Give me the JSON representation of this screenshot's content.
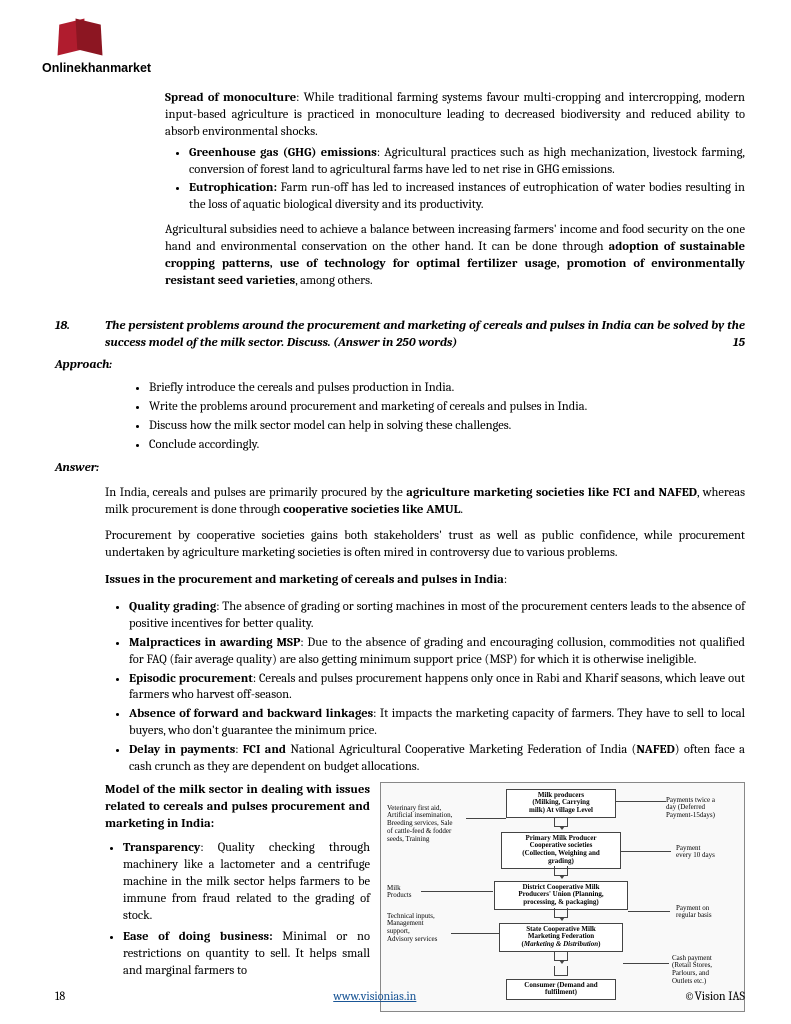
{
  "brand": "Onlinekhanmarket",
  "intro_bullets": {
    "monoculture": {
      "title": "Spread of monoculture",
      "text": ": While traditional farming systems favour multi-cropping and intercropping, modern input-based agriculture is practiced in monoculture leading to decreased biodiversity and reduced ability to absorb environmental shocks."
    },
    "ghg": {
      "title": "Greenhouse gas (GHG) emissions",
      "text": ": Agricultural practices such as high mechanization, livestock farming, conversion of forest land to agricultural farms have led to net rise in GHG emissions."
    },
    "eutro": {
      "title": "Eutrophication:",
      "text": " Farm run-off has led to increased instances of eutrophication of water bodies resulting in the loss of aquatic biological diversity and its productivity."
    }
  },
  "conclusion": {
    "pre": "Agricultural subsidies need to achieve a balance between increasing farmers' income and food security on the one hand and environmental conservation on the other hand. It can be done through ",
    "bold": "adoption of sustainable cropping patterns, use of technology for optimal fertilizer usage, promotion of environmentally resistant seed varieties",
    "post": ", among others."
  },
  "question": {
    "num": "18.",
    "text": "The persistent problems around the procurement and marketing of cereals and pulses in India can be solved by the success model of the milk sector. Discuss. (Answer in 250 words)",
    "marks": "15"
  },
  "headings": {
    "approach": "Approach:",
    "answer": "Answer:"
  },
  "approach": [
    "Briefly introduce the cereals and pulses production in India.",
    "Write the problems around procurement and marketing of cereals and pulses in India.",
    "Discuss how the milk sector model can help in solving these challenges.",
    "Conclude accordingly."
  ],
  "answer_p1": {
    "a": "In India, cereals and pulses are primarily procured by the ",
    "b": "agriculture marketing societies like FCI and NAFED",
    "c": ", whereas milk procurement is done through ",
    "d": "cooperative societies like AMUL",
    "e": "."
  },
  "answer_p2": "Procurement by cooperative societies gains both stakeholders' trust as well as public confidence, while procurement undertaken by agriculture marketing societies is often mired in controversy due to various problems.",
  "issues_heading": "Issues in the procurement and marketing of cereals and pulses in India",
  "issues": {
    "quality": {
      "t": "Quality grading",
      "x": ": The absence of grading or sorting machines in most of the procurement centers leads to the absence of positive incentives for better quality."
    },
    "msp": {
      "t": "Malpractices in awarding MSP",
      "x": ": Due to the absence of grading and encouraging collusion, commodities not qualified for FAQ (fair average quality) are also getting minimum support price (MSP) for which it is otherwise ineligible."
    },
    "episodic": {
      "t": "Episodic procurement",
      "x": ": Cereals and pulses procurement happens only once in Rabi and Kharif seasons, which leave out farmers who harvest off-season."
    },
    "linkages": {
      "t": "Absence of forward and backward linkages",
      "x": ": It impacts the marketing capacity of farmers. They have to sell to local buyers, who don't guarantee the minimum price."
    },
    "delay": {
      "t": "Delay in payments",
      "x1": ": ",
      "t2": "FCI and ",
      "x2": "National Agricultural Cooperative Marketing Federation of India (",
      "t3": "NAFED",
      "x3": ") often face a cash crunch as they are dependent on budget allocations."
    }
  },
  "model_heading": "Model of the milk sector in dealing with issues related to cereals and pulses procurement and marketing in India",
  "model": {
    "transparency": {
      "t": "Transparency",
      "x": ": Quality checking through machinery like a lactometer and a centrifuge machine in the milk sector helps farmers to be immune from fraud related to the grading of stock."
    },
    "ease": {
      "t": "Ease of doing business:",
      "x": " Minimal or no restrictions on quantity to sell. It helps small and marginal farmers to"
    }
  },
  "flowchart": {
    "boxes": {
      "producers": "Milk producers\n(Milking, Carrying\nmilk) At village Level",
      "primary": "Primary Milk Producer\nCooperative societies\n(Collection, Weighing and\ngrading)",
      "district": "District Cooperative Milk\nProducers' Union (Planning,\nprocessing, & packaging)",
      "state": "State Cooperative Milk\nMarketing Federation\n(Marketing & Distribution)",
      "consumer": "Consumer (Demand and\nfulfilment)"
    },
    "left_labels": {
      "vet": "Veterinary first aid,\nArtificial insemination,\nBreeding services, Sale\nof cattle-feed & fodder\nseeds, Training",
      "milk": "Milk\nProducts",
      "tech": "Technical inputs,\nManagement\nsupport,\nAdvisory services"
    },
    "right_labels": {
      "pay1": "Payments twice a\nday (Deferred\nPayment-15days)",
      "pay2": "Payment\nevery 10 days",
      "pay3": "Payment on\nregular basis",
      "pay4": "Cash payment\n(Retail Stores,\nParlours, and\nOutlets etc.)"
    }
  },
  "footer": {
    "page": "18",
    "url": "www.visionias.in",
    "copyright": "©Vision IAS"
  }
}
